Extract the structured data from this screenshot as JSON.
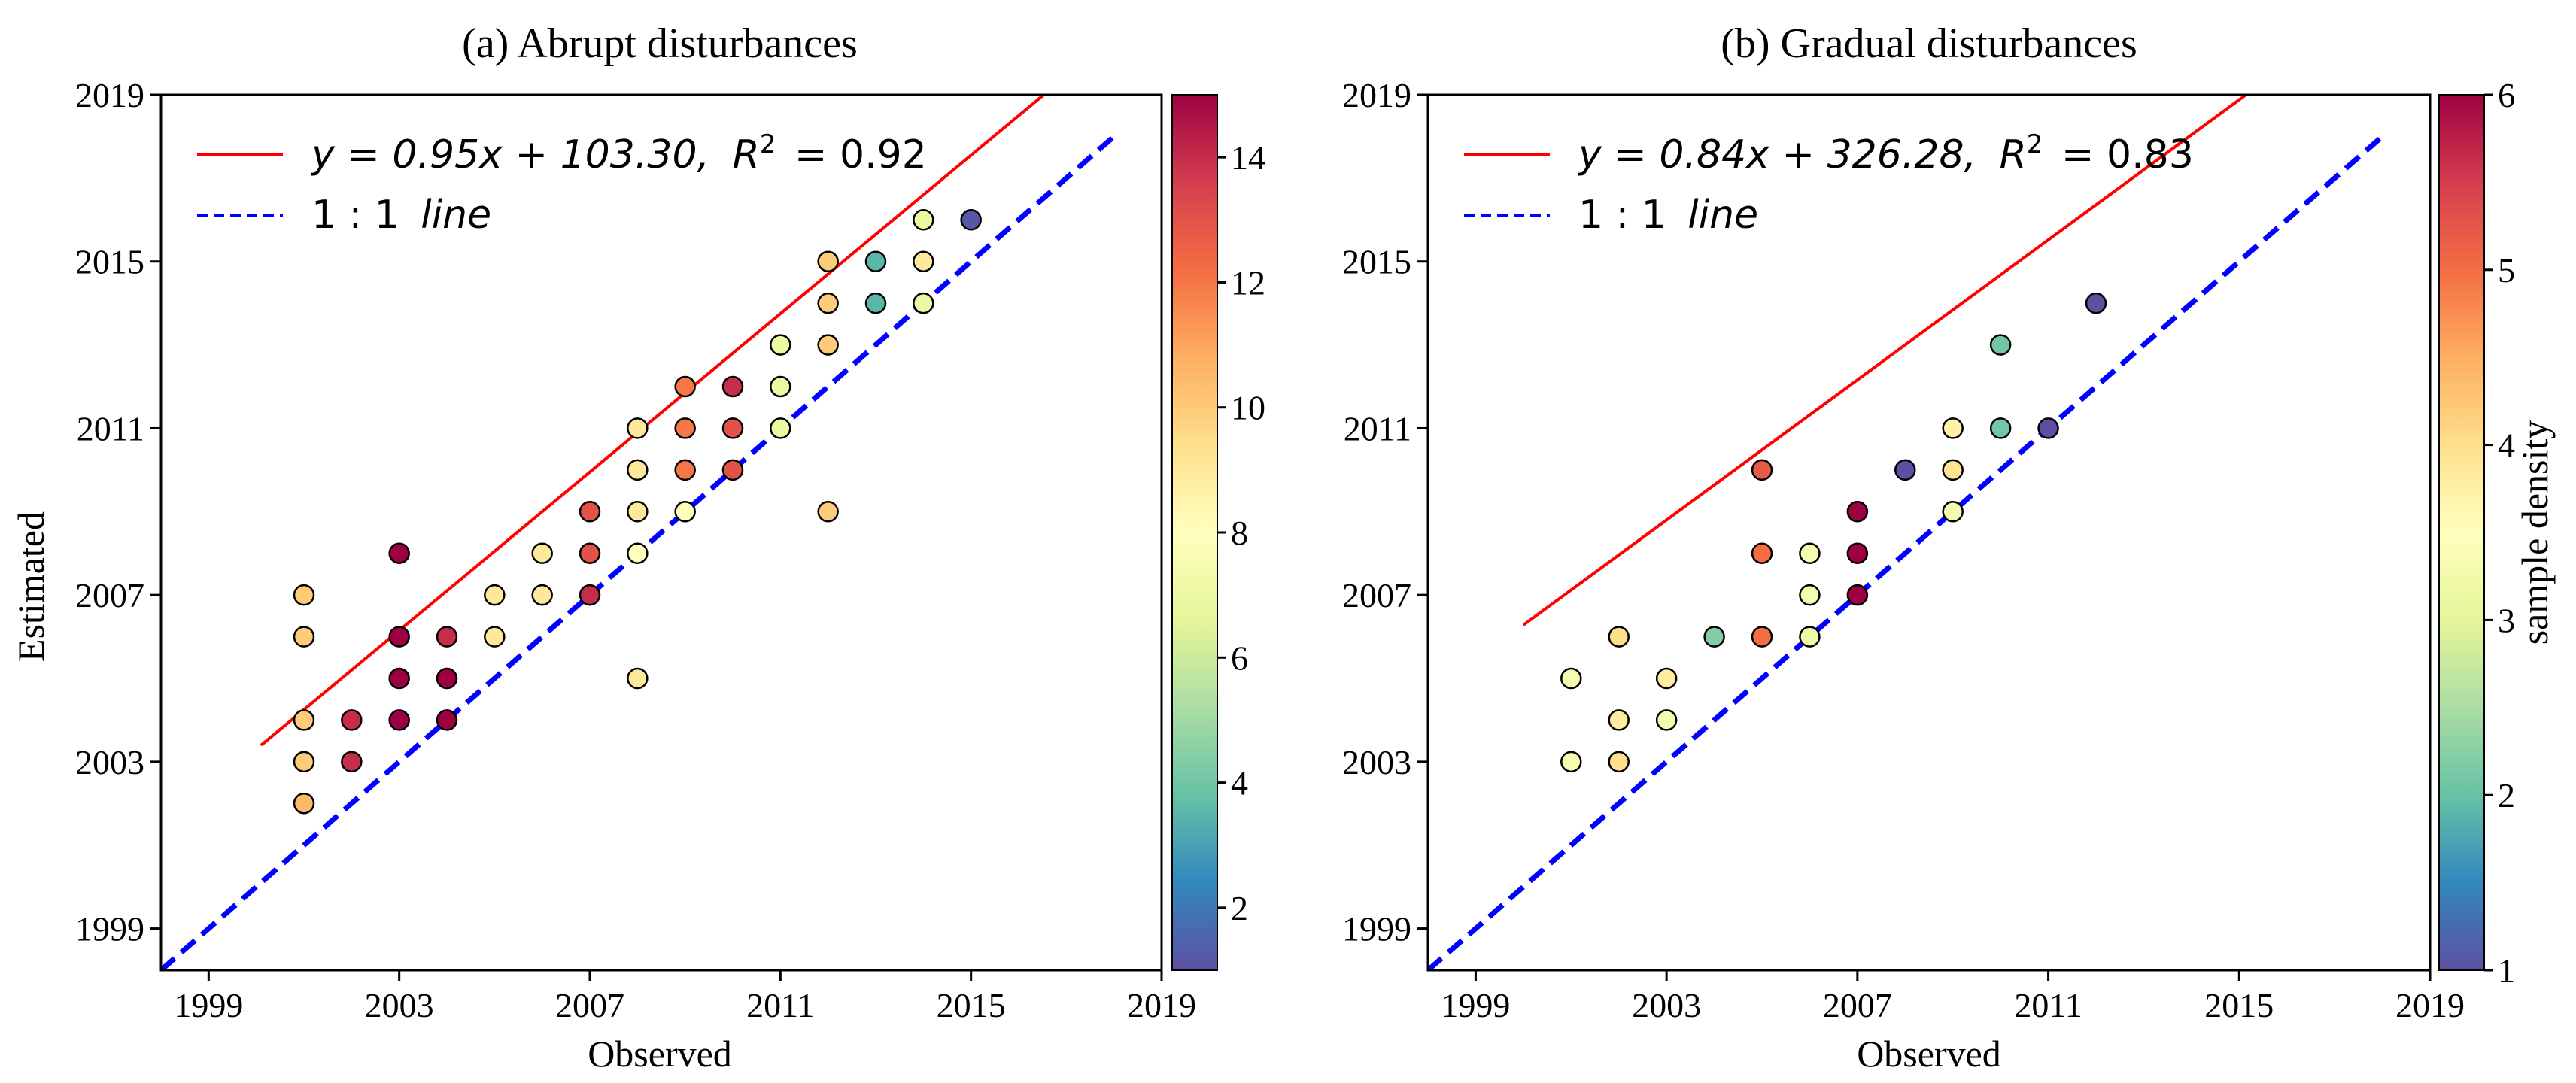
{
  "colormap": {
    "name": "Spectral_r",
    "stops": [
      "#5e4fa2",
      "#3288bd",
      "#66c2a5",
      "#abdda4",
      "#e6f598",
      "#ffffbf",
      "#fee08b",
      "#fdae61",
      "#f46d43",
      "#d53e4f",
      "#9e0142"
    ]
  },
  "chart_data": [
    {
      "type": "scatter",
      "title": "(a) Abrupt disturbances",
      "xlabel": "Observed",
      "ylabel": "Estimated",
      "xlim": [
        1998,
        2019
      ],
      "ylim": [
        1998,
        2019
      ],
      "xticks": [
        "1999",
        "2003",
        "2007",
        "2011",
        "2015",
        "2019"
      ],
      "yticks": [
        "1999",
        "2003",
        "2007",
        "2011",
        "2015",
        "2019"
      ],
      "fit": {
        "slope": 0.95,
        "intercept": 103.3,
        "r2": 0.92,
        "x_range": [
          2000.1,
          2018.0
        ],
        "color": "#ff0000",
        "label_lhs": "y = 0.95x + 103.30,",
        "label_r2": "R",
        "label_r2_value": "= 0.92"
      },
      "one_to_one": {
        "color": "#0000ff",
        "label": "1 : 1",
        "label_italic": "line"
      },
      "colorbar": {
        "min": 1,
        "max": 15,
        "ticks": [
          "2",
          "4",
          "6",
          "8",
          "10",
          "12",
          "14"
        ],
        "label": ""
      },
      "points": [
        {
          "x": 2001,
          "y": 2002,
          "d": 10.5
        },
        {
          "x": 2001,
          "y": 2003,
          "d": 10
        },
        {
          "x": 2001,
          "y": 2004,
          "d": 10
        },
        {
          "x": 2001,
          "y": 2006,
          "d": 10
        },
        {
          "x": 2001,
          "y": 2007,
          "d": 10
        },
        {
          "x": 2002,
          "y": 2003,
          "d": 14
        },
        {
          "x": 2002,
          "y": 2004,
          "d": 14
        },
        {
          "x": 2003,
          "y": 2004,
          "d": 15
        },
        {
          "x": 2003,
          "y": 2005,
          "d": 15
        },
        {
          "x": 2003,
          "y": 2006,
          "d": 15
        },
        {
          "x": 2003,
          "y": 2008,
          "d": 15
        },
        {
          "x": 2004,
          "y": 2004,
          "d": 15
        },
        {
          "x": 2004,
          "y": 2005,
          "d": 15
        },
        {
          "x": 2004,
          "y": 2006,
          "d": 14
        },
        {
          "x": 2005,
          "y": 2006,
          "d": 9
        },
        {
          "x": 2005,
          "y": 2007,
          "d": 9
        },
        {
          "x": 2006,
          "y": 2007,
          "d": 9
        },
        {
          "x": 2006,
          "y": 2008,
          "d": 9
        },
        {
          "x": 2007,
          "y": 2007,
          "d": 14
        },
        {
          "x": 2007,
          "y": 2008,
          "d": 13
        },
        {
          "x": 2007,
          "y": 2009,
          "d": 13
        },
        {
          "x": 2008,
          "y": 2005,
          "d": 9
        },
        {
          "x": 2008,
          "y": 2008,
          "d": 8
        },
        {
          "x": 2008,
          "y": 2009,
          "d": 9
        },
        {
          "x": 2008,
          "y": 2010,
          "d": 9
        },
        {
          "x": 2008,
          "y": 2011,
          "d": 9
        },
        {
          "x": 2009,
          "y": 2009,
          "d": 8
        },
        {
          "x": 2009,
          "y": 2010,
          "d": 12
        },
        {
          "x": 2009,
          "y": 2011,
          "d": 12
        },
        {
          "x": 2009,
          "y": 2012,
          "d": 12
        },
        {
          "x": 2010,
          "y": 2010,
          "d": 13
        },
        {
          "x": 2010,
          "y": 2011,
          "d": 13
        },
        {
          "x": 2010,
          "y": 2012,
          "d": 14
        },
        {
          "x": 2011,
          "y": 2011,
          "d": 7
        },
        {
          "x": 2011,
          "y": 2012,
          "d": 7
        },
        {
          "x": 2011,
          "y": 2013,
          "d": 7
        },
        {
          "x": 2012,
          "y": 2009,
          "d": 10
        },
        {
          "x": 2012,
          "y": 2013,
          "d": 10
        },
        {
          "x": 2012,
          "y": 2014,
          "d": 10
        },
        {
          "x": 2012,
          "y": 2015,
          "d": 10
        },
        {
          "x": 2013,
          "y": 2014,
          "d": 3.5
        },
        {
          "x": 2013,
          "y": 2015,
          "d": 3.5
        },
        {
          "x": 2014,
          "y": 2014,
          "d": 7
        },
        {
          "x": 2014,
          "y": 2015,
          "d": 9
        },
        {
          "x": 2014,
          "y": 2016,
          "d": 7
        },
        {
          "x": 2015,
          "y": 2016,
          "d": 1.2
        }
      ]
    },
    {
      "type": "scatter",
      "title": "(b) Gradual disturbances",
      "xlabel": "Observed",
      "ylabel": "",
      "xlim": [
        1998,
        2019
      ],
      "ylim": [
        1998,
        2019
      ],
      "xticks": [
        "1999",
        "2003",
        "2007",
        "2011",
        "2015",
        "2019"
      ],
      "yticks": [
        "1999",
        "2003",
        "2007",
        "2011",
        "2015",
        "2019"
      ],
      "fit": {
        "slope": 0.84,
        "intercept": 326.28,
        "r2": 0.83,
        "x_range": [
          2000.0,
          2018.0
        ],
        "color": "#ff0000",
        "label_lhs": "y = 0.84x + 326.28,",
        "label_r2": "R",
        "label_r2_value": "= 0.83"
      },
      "one_to_one": {
        "color": "#0000ff",
        "label": "1 : 1",
        "label_italic": "line"
      },
      "colorbar": {
        "min": 1,
        "max": 6,
        "ticks": [
          "1",
          "2",
          "3",
          "4",
          "5",
          "6"
        ],
        "label": "sample density"
      },
      "points": [
        {
          "x": 2001,
          "y": 2003,
          "d": 3.3
        },
        {
          "x": 2001,
          "y": 2005,
          "d": 3.3
        },
        {
          "x": 2002,
          "y": 2003,
          "d": 4
        },
        {
          "x": 2002,
          "y": 2004,
          "d": 3.8
        },
        {
          "x": 2002,
          "y": 2006,
          "d": 4
        },
        {
          "x": 2003,
          "y": 2004,
          "d": 3.3
        },
        {
          "x": 2003,
          "y": 2005,
          "d": 3.8
        },
        {
          "x": 2004,
          "y": 2006,
          "d": 2.2
        },
        {
          "x": 2005,
          "y": 2006,
          "d": 5
        },
        {
          "x": 2005,
          "y": 2008,
          "d": 5
        },
        {
          "x": 2005,
          "y": 2010,
          "d": 5.2
        },
        {
          "x": 2006,
          "y": 2006,
          "d": 3.2
        },
        {
          "x": 2006,
          "y": 2007,
          "d": 3.3
        },
        {
          "x": 2006,
          "y": 2008,
          "d": 3.3
        },
        {
          "x": 2007,
          "y": 2007,
          "d": 6
        },
        {
          "x": 2007,
          "y": 2008,
          "d": 6
        },
        {
          "x": 2007,
          "y": 2009,
          "d": 6
        },
        {
          "x": 2008,
          "y": 2010,
          "d": 1
        },
        {
          "x": 2009,
          "y": 2009,
          "d": 3.3
        },
        {
          "x": 2009,
          "y": 2010,
          "d": 3.9
        },
        {
          "x": 2009,
          "y": 2011,
          "d": 3.7
        },
        {
          "x": 2010,
          "y": 2011,
          "d": 2.1
        },
        {
          "x": 2010,
          "y": 2013,
          "d": 2.1
        },
        {
          "x": 2011,
          "y": 2011,
          "d": 1
        },
        {
          "x": 2012,
          "y": 2014,
          "d": 1
        }
      ]
    }
  ]
}
